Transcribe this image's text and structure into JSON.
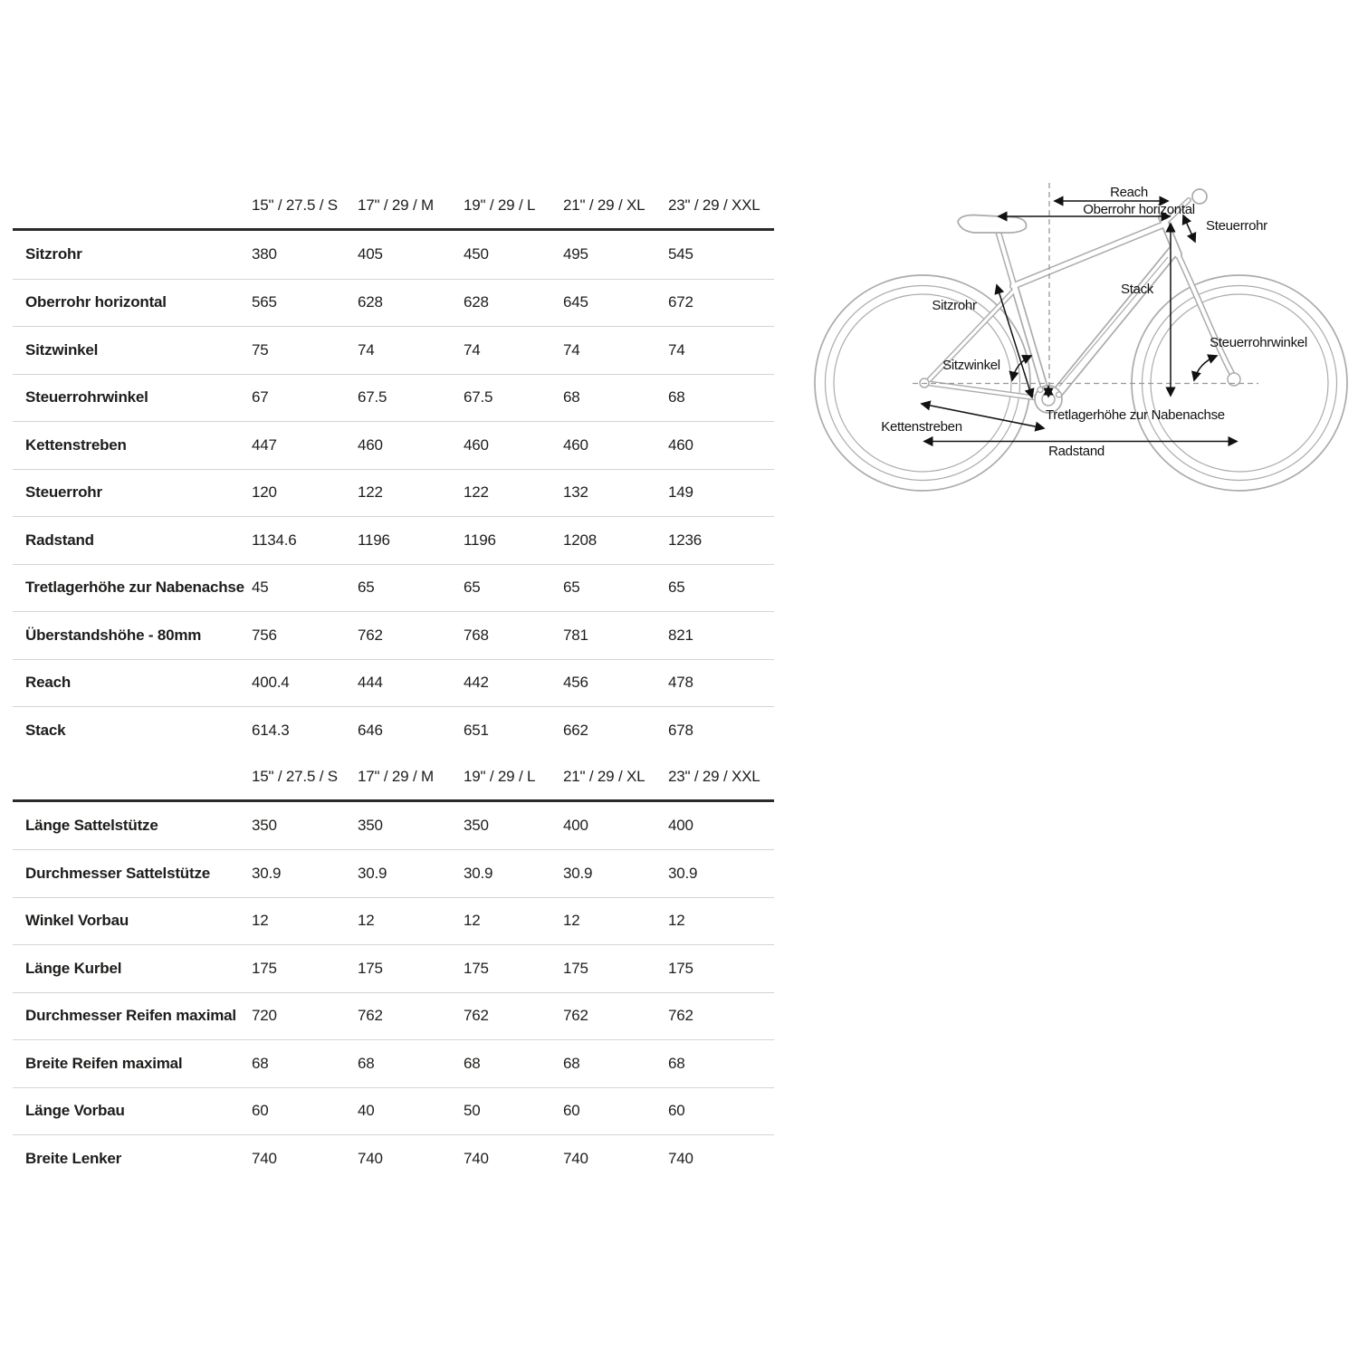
{
  "table": {
    "size_headers": [
      "15\" / 27.5 / S",
      "17\" / 29 / M",
      "19\" / 29 / L",
      "21\" / 29 / XL",
      "23\" / 29 / XXL"
    ],
    "sections": [
      {
        "rows": [
          {
            "label": "Sitzrohr",
            "values": [
              "380",
              "405",
              "450",
              "495",
              "545"
            ]
          },
          {
            "label": "Oberrohr horizontal",
            "values": [
              "565",
              "628",
              "628",
              "645",
              "672"
            ]
          },
          {
            "label": "Sitzwinkel",
            "values": [
              "75",
              "74",
              "74",
              "74",
              "74"
            ]
          },
          {
            "label": "Steuerrohrwinkel",
            "values": [
              "67",
              "67.5",
              "67.5",
              "68",
              "68"
            ]
          },
          {
            "label": "Kettenstreben",
            "values": [
              "447",
              "460",
              "460",
              "460",
              "460"
            ]
          },
          {
            "label": "Steuerrohr",
            "values": [
              "120",
              "122",
              "122",
              "132",
              "149"
            ]
          },
          {
            "label": "Radstand",
            "values": [
              "1134.6",
              "1196",
              "1196",
              "1208",
              "1236"
            ]
          },
          {
            "label": "Tretlagerhöhe zur Nabenachse",
            "values": [
              "45",
              "65",
              "65",
              "65",
              "65"
            ]
          },
          {
            "label": "Überstandshöhe - 80mm",
            "values": [
              "756",
              "762",
              "768",
              "781",
              "821"
            ]
          },
          {
            "label": "Reach",
            "values": [
              "400.4",
              "444",
              "442",
              "456",
              "478"
            ]
          },
          {
            "label": "Stack",
            "values": [
              "614.3",
              "646",
              "651",
              "662",
              "678"
            ]
          }
        ]
      },
      {
        "rows": [
          {
            "label": "Länge Sattelstütze",
            "values": [
              "350",
              "350",
              "350",
              "400",
              "400"
            ]
          },
          {
            "label": "Durchmesser Sattelstütze",
            "values": [
              "30.9",
              "30.9",
              "30.9",
              "30.9",
              "30.9"
            ]
          },
          {
            "label": "Winkel Vorbau",
            "values": [
              "12",
              "12",
              "12",
              "12",
              "12"
            ]
          },
          {
            "label": "Länge Kurbel",
            "values": [
              "175",
              "175",
              "175",
              "175",
              "175"
            ]
          },
          {
            "label": "Durchmesser Reifen maximal",
            "values": [
              "720",
              "762",
              "762",
              "762",
              "762"
            ]
          },
          {
            "label": "Breite Reifen maximal",
            "values": [
              "68",
              "68",
              "68",
              "68",
              "68"
            ]
          },
          {
            "label": "Länge Vorbau",
            "values": [
              "60",
              "40",
              "50",
              "60",
              "60"
            ]
          },
          {
            "label": "Breite Lenker",
            "values": [
              "740",
              "740",
              "740",
              "740",
              "740"
            ]
          }
        ]
      }
    ]
  },
  "diagram": {
    "labels": {
      "reach": "Reach",
      "oberrohr_horizontal": "Oberrohr horizontal",
      "steuerrohr": "Steuerrohr",
      "sitzrohr": "Sitzrohr",
      "stack": "Stack",
      "steuerrohrwinkel": "Steuerrohrwinkel",
      "sitzwinkel": "Sitzwinkel",
      "tretlagerhoehe": "Tretlagerhöhe zur Nabenachse",
      "kettenstreben": "Kettenstreben",
      "radstand": "Radstand"
    },
    "colors": {
      "frame_line": "#ababab",
      "annotation": "#111111",
      "dashed_line": "#999999",
      "rule_dark": "#2a2a2a",
      "rule_light": "#d4d4d4"
    }
  }
}
